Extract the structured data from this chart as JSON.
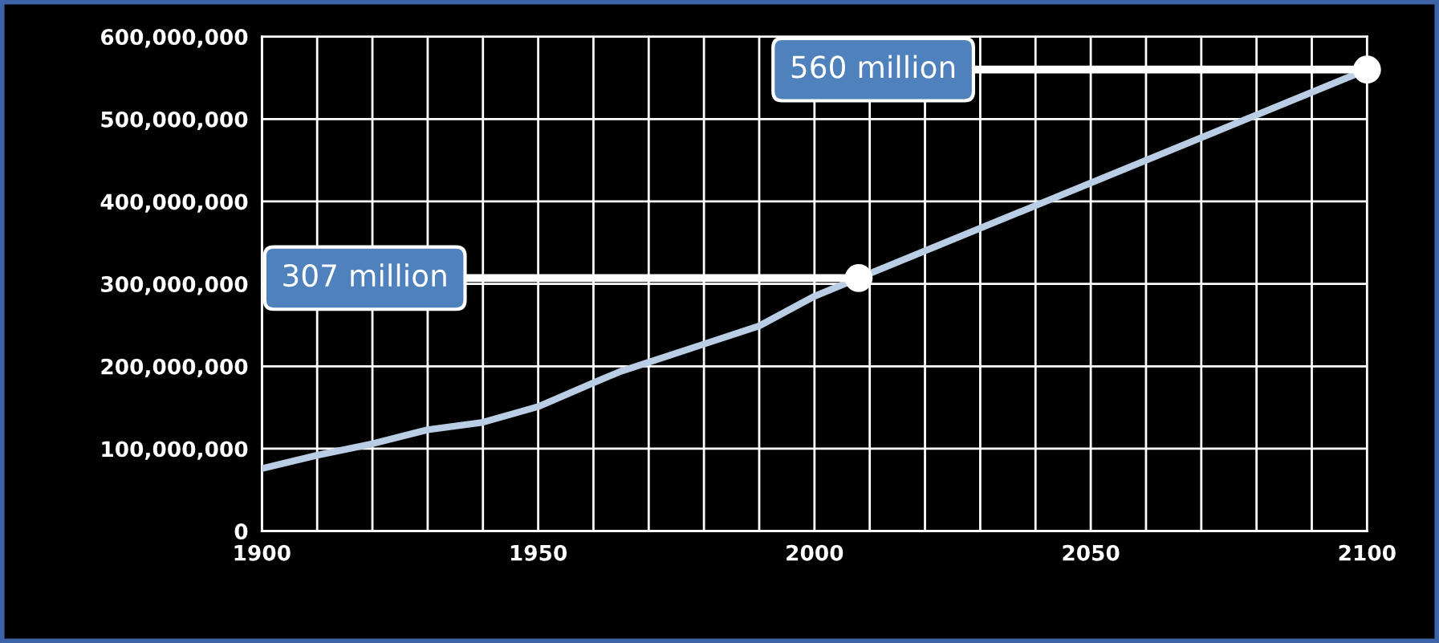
{
  "chart_data": {
    "type": "line",
    "x": [
      1900,
      1910,
      1920,
      1930,
      1940,
      1950,
      1960,
      1965,
      1970,
      1980,
      1990,
      2000,
      2008,
      2100
    ],
    "series": [
      {
        "color": "#b9cde5",
        "values": [
          76000000,
          92000000,
          106000000,
          123000000,
          132000000,
          151000000,
          180000000,
          194000000,
          205000000,
          227000000,
          249000000,
          285000000,
          307000000,
          560000000
        ]
      }
    ],
    "xlim": [
      1900,
      2100
    ],
    "xticks": [
      1900,
      {
        "value": 1910,
        "label": null
      },
      {
        "value": 1920,
        "label": null
      },
      {
        "value": 1930,
        "label": null
      },
      {
        "value": 1940,
        "label": null
      },
      1950,
      {
        "value": 1960,
        "label": null
      },
      {
        "value": 1970,
        "label": null
      },
      {
        "value": 1980,
        "label": null
      },
      {
        "value": 1990,
        "label": null
      },
      2000,
      {
        "value": 2010,
        "label": null
      },
      {
        "value": 2020,
        "label": null
      },
      {
        "value": 2030,
        "label": null
      },
      {
        "value": 2040,
        "label": null
      },
      2050,
      {
        "value": 2060,
        "label": null
      },
      {
        "value": 2070,
        "label": null
      },
      {
        "value": 2080,
        "label": null
      },
      {
        "value": 2090,
        "label": null
      },
      2100
    ],
    "ylim": [
      0,
      600000000
    ],
    "yticks": [
      0,
      {
        "value": 100000000,
        "label": "100,000,000"
      },
      {
        "value": 200000000,
        "label": "200,000,000"
      },
      {
        "value": 300000000,
        "label": "300,000,000"
      },
      {
        "value": 400000000,
        "label": "400,000,000"
      },
      {
        "value": 500000000,
        "label": "500,000,000"
      },
      {
        "value": 600000000,
        "label": "600,000,000"
      }
    ],
    "grid": true,
    "legend": false,
    "marker": "none",
    "line_style": "solid",
    "annotations": [
      {
        "text": "307 million",
        "x": 2008,
        "y": 307000000
      },
      {
        "text": "560 million",
        "x": 2100,
        "y": 560000000
      }
    ]
  }
}
